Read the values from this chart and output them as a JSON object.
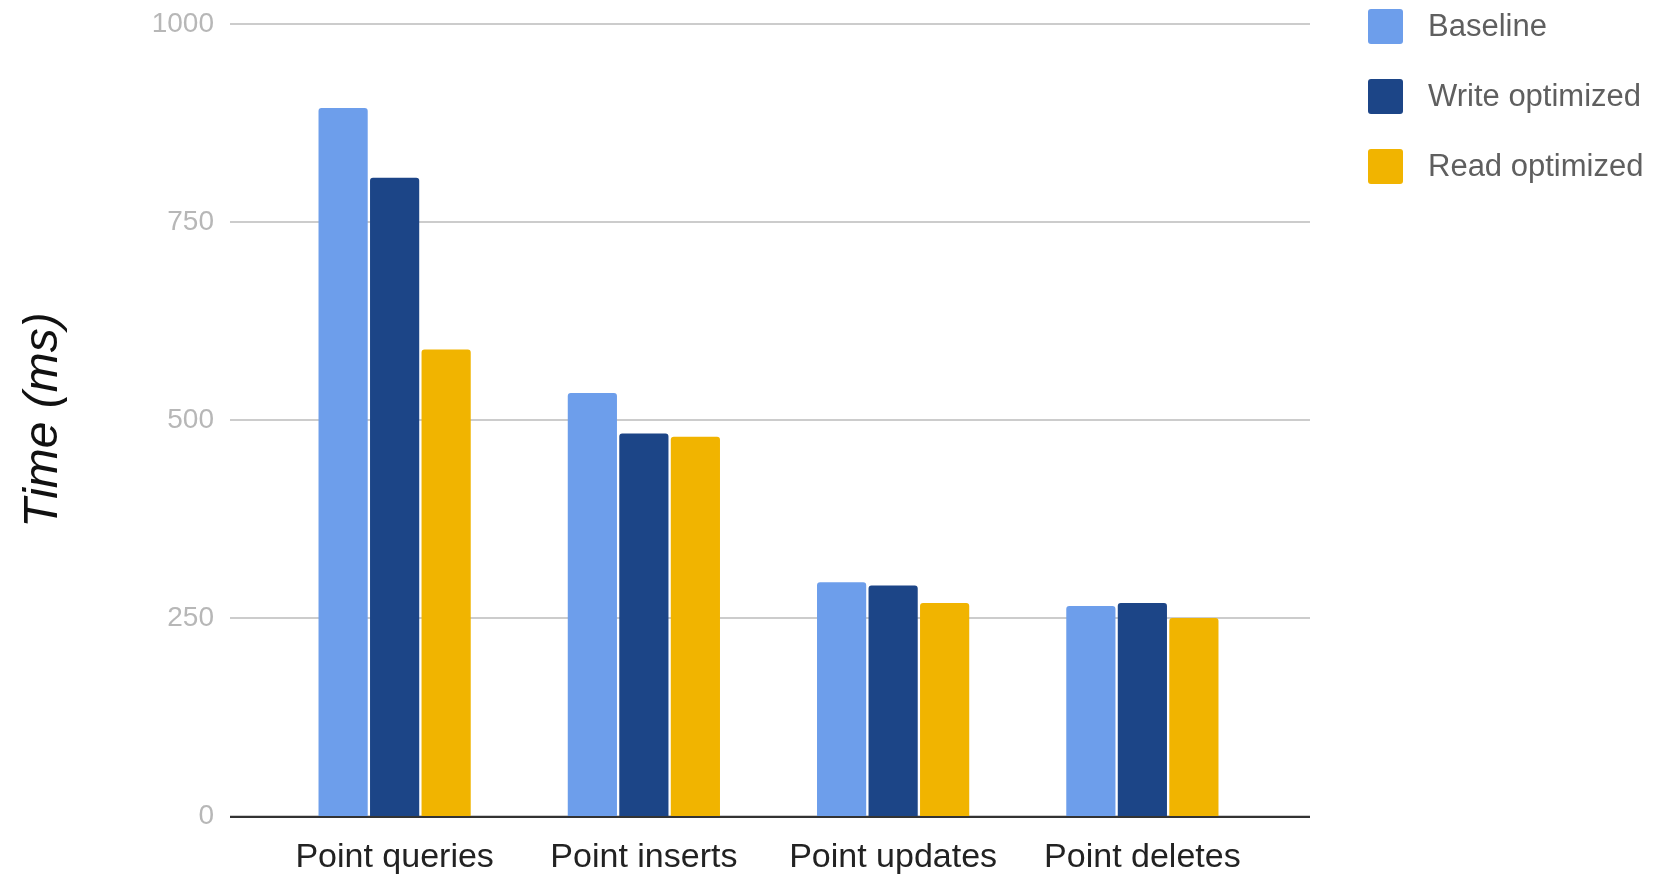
{
  "chart_data": {
    "type": "bar",
    "ylabel": "Time (ms)",
    "categories": [
      "Point queries",
      "Point inserts",
      "Point updates",
      "Point deletes"
    ],
    "series": [
      {
        "name": "Baseline",
        "color": "#6d9eeb",
        "values": [
          894,
          534,
          295,
          265
        ]
      },
      {
        "name": "Write optimized",
        "color": "#1c4587",
        "values": [
          806,
          483,
          291,
          269
        ]
      },
      {
        "name": "Read optimized",
        "color": "#f1b400",
        "values": [
          589,
          479,
          269,
          250
        ]
      }
    ],
    "ylim": [
      0,
      1000
    ],
    "yticks": [
      0,
      250,
      500,
      750,
      1000
    ],
    "grid": "y",
    "legend": "top right"
  }
}
